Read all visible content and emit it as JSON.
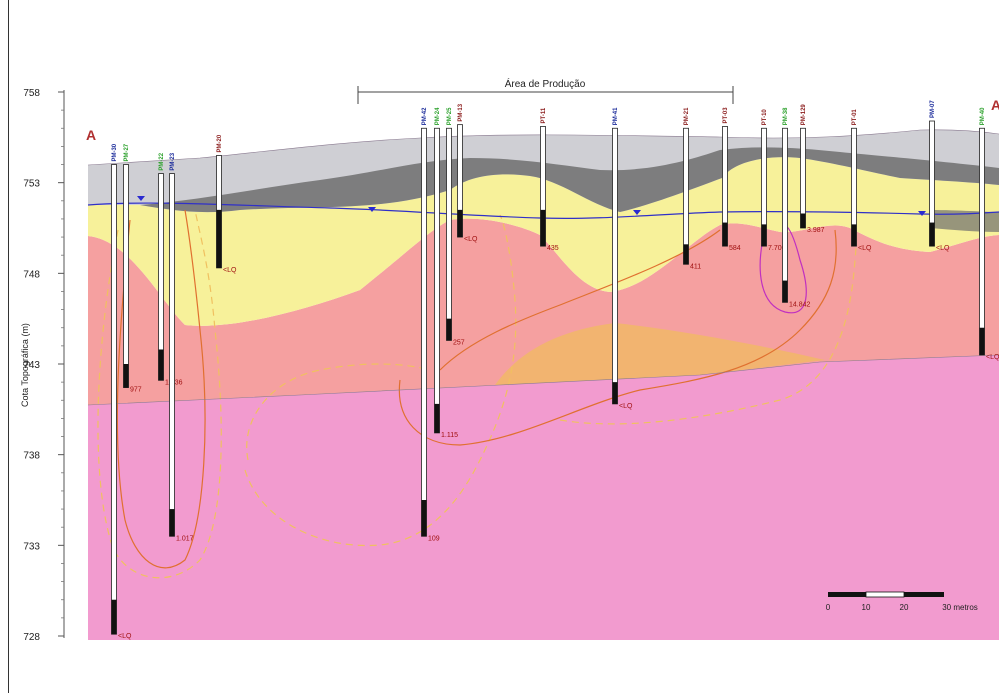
{
  "axis": {
    "title": "Cota Topográfica (m)",
    "ticks": [
      758,
      753,
      748,
      743,
      738,
      733,
      728
    ],
    "range": [
      728,
      758
    ]
  },
  "section_labels": {
    "left": "A",
    "right": "A"
  },
  "zone_label": "Área de Produção",
  "colors": {
    "dark_layer": "#6e6e6e",
    "light_gray_layer": "#cfcfd4",
    "yellow_layer": "#f7f19a",
    "salmon_layer": "#f5a0a0",
    "magenta_layer": "#f29bcf",
    "orange_lens": "#f2b470",
    "water_table": "#3030c8",
    "contour": "#e07030",
    "well_blue": "#1a2a9a",
    "well_green": "#2aa02a",
    "value_red": "#a01010"
  },
  "wells": [
    {
      "name": "PM-30",
      "color": "blue",
      "top": 754,
      "bottom": 728.1,
      "screen_top": 730,
      "screen_bottom": 728.1,
      "value": "<LQ"
    },
    {
      "name": "PM-27",
      "color": "green",
      "top": 754,
      "bottom": 741.7,
      "screen_top": 743,
      "screen_bottom": 741.7,
      "value": "977"
    },
    {
      "name": "PM-22",
      "color": "green",
      "top": 753.5,
      "bottom": 742.1,
      "screen_top": 743.8,
      "screen_bottom": 742.1,
      "value": "1.636"
    },
    {
      "name": "PM-23",
      "color": "blue",
      "top": 753.5,
      "bottom": 733.5,
      "screen_top": 735,
      "screen_bottom": 733.5,
      "value": "1.017"
    },
    {
      "name": "PM-20",
      "color": "red",
      "top": 754.5,
      "bottom": 748.3,
      "screen_top": 751.5,
      "screen_bottom": 748.3,
      "value": "<LQ"
    },
    {
      "name": "PM-42",
      "color": "blue",
      "top": 756,
      "bottom": 733.5,
      "screen_top": 735.5,
      "screen_bottom": 733.5,
      "value": "109"
    },
    {
      "name": "PM-24",
      "color": "green",
      "top": 756,
      "bottom": 739.2,
      "screen_top": 740.8,
      "screen_bottom": 739.2,
      "value": "1.115"
    },
    {
      "name": "PM-25",
      "color": "green",
      "top": 756,
      "bottom": 744.3,
      "screen_top": 745.5,
      "screen_bottom": 744.3,
      "value": "257"
    },
    {
      "name": "PM-13",
      "color": "red",
      "top": 756.2,
      "bottom": 750,
      "screen_top": 751.5,
      "screen_bottom": 750,
      "value": "<LQ"
    },
    {
      "name": "PT-11",
      "color": "red",
      "top": 756.1,
      "bottom": 749.5,
      "screen_top": 751.5,
      "screen_bottom": 749.5,
      "value": "435"
    },
    {
      "name": "PM-41",
      "color": "blue",
      "top": 756,
      "bottom": 740.8,
      "screen_top": 742,
      "screen_bottom": 740.8,
      "value": "<LQ"
    },
    {
      "name": "PM-21",
      "color": "red",
      "top": 756,
      "bottom": 748.5,
      "screen_top": 749.6,
      "screen_bottom": 748.5,
      "value": "411"
    },
    {
      "name": "PT-03",
      "color": "red",
      "top": 756.1,
      "bottom": 749.5,
      "screen_top": 750.8,
      "screen_bottom": 749.5,
      "value": "584"
    },
    {
      "name": "PT-10",
      "color": "red",
      "top": 756,
      "bottom": 749.5,
      "screen_top": 750.7,
      "screen_bottom": 749.5,
      "value": "7.700"
    },
    {
      "name": "PM-38",
      "color": "green",
      "top": 756,
      "bottom": 746.4,
      "screen_top": 747.6,
      "screen_bottom": 746.4,
      "value": "14.842"
    },
    {
      "name": "PM-129",
      "color": "red",
      "top": 756,
      "bottom": 750.5,
      "screen_top": 751.3,
      "screen_bottom": 750.5,
      "value": "3.987"
    },
    {
      "name": "PT-01",
      "color": "red",
      "top": 756,
      "bottom": 749.5,
      "screen_top": 750.7,
      "screen_bottom": 749.5,
      "value": "<LQ"
    },
    {
      "name": "PM-07",
      "color": "blue",
      "top": 756.4,
      "bottom": 749.5,
      "screen_top": 750.8,
      "screen_bottom": 749.5,
      "value": "<LQ"
    },
    {
      "name": "PM-40",
      "color": "green",
      "top": 756,
      "bottom": 743.5,
      "screen_top": 745,
      "screen_bottom": 743.5,
      "value": "<LQ"
    }
  ],
  "scale_bar": {
    "labels": [
      "0",
      "10",
      "20",
      "30 metros"
    ]
  }
}
